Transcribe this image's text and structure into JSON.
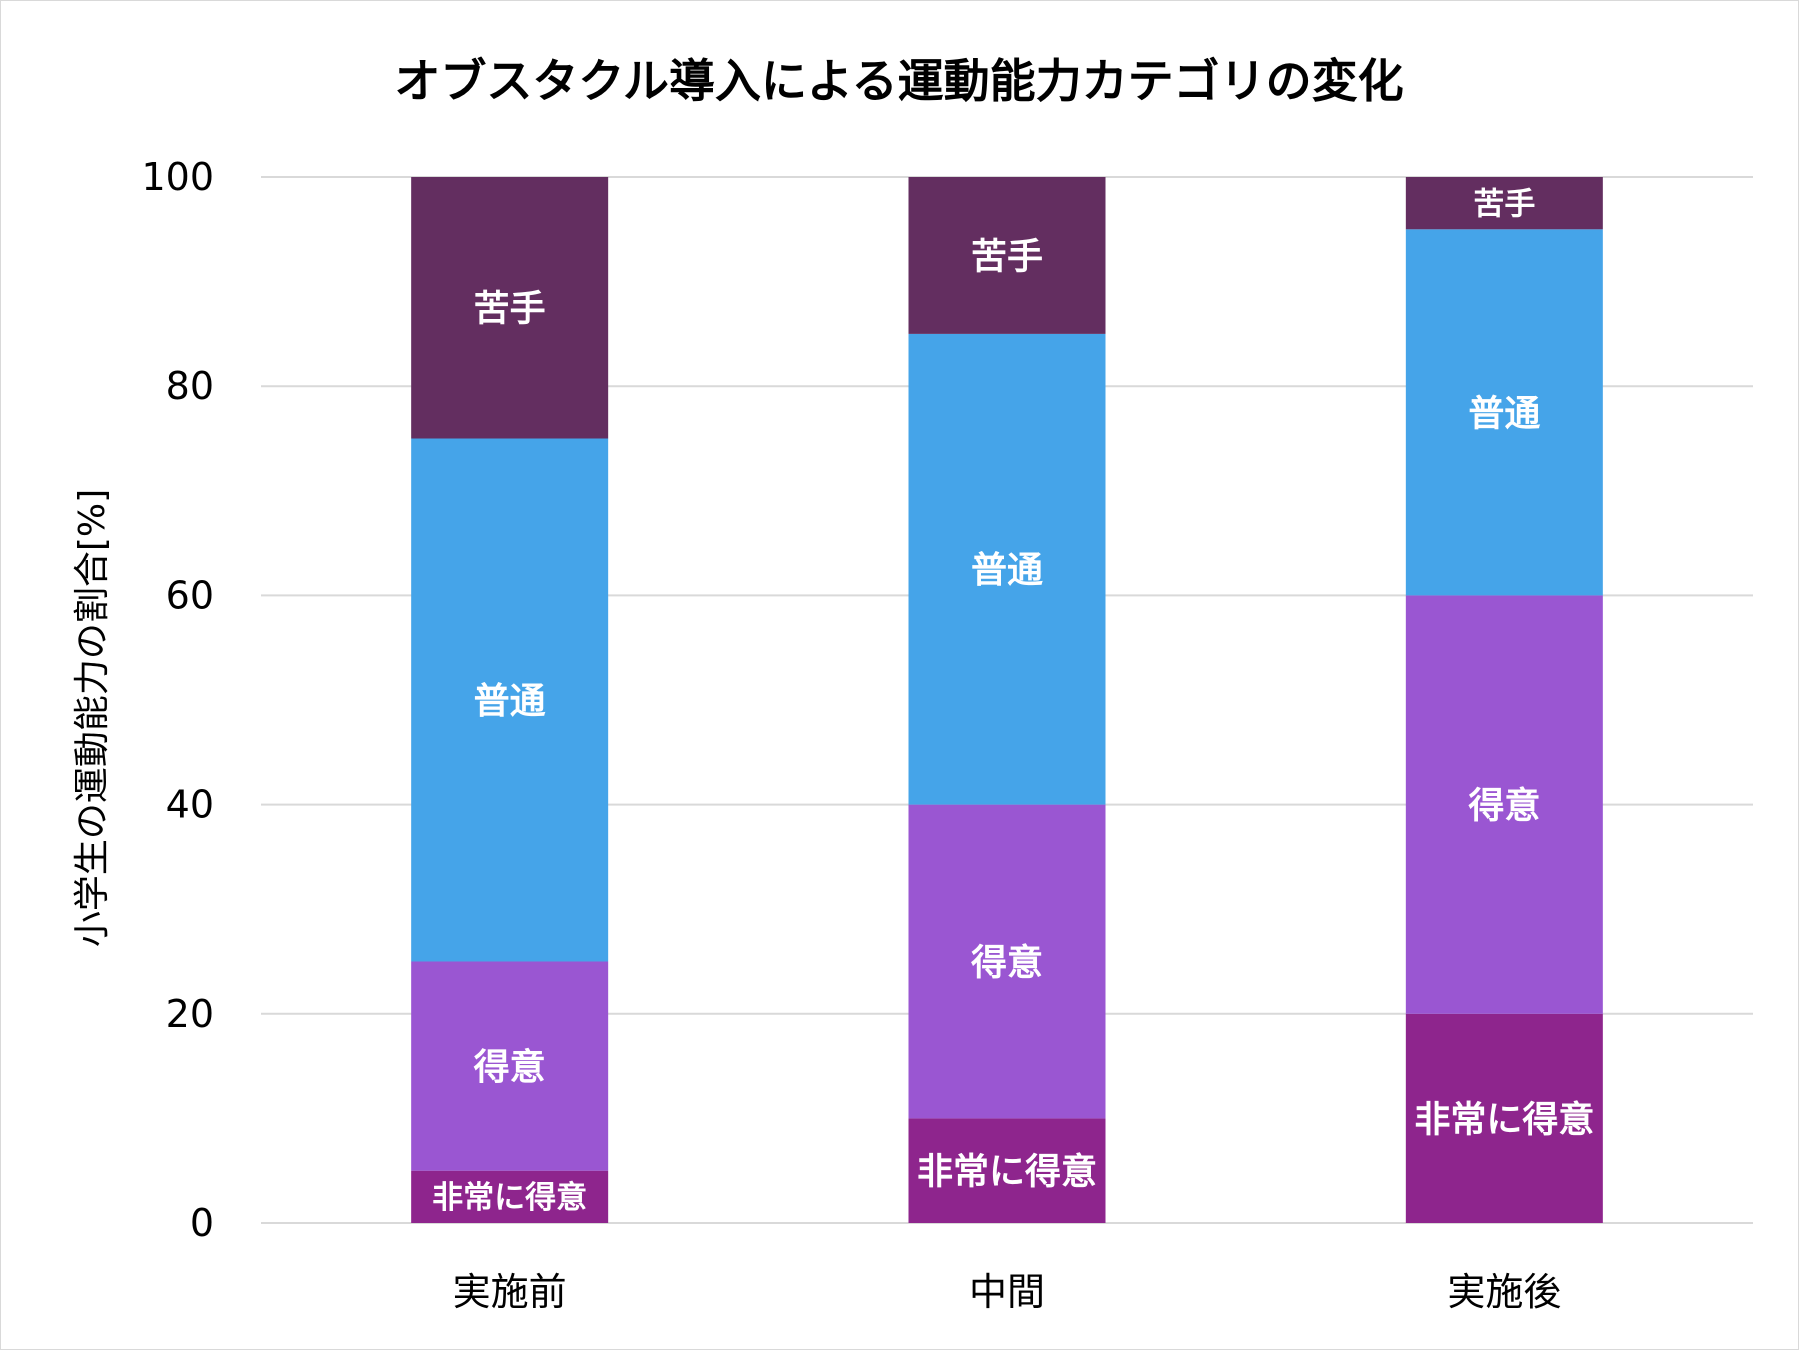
{
  "chart_data": {
    "type": "bar",
    "stacked": true,
    "title": "オブスタクル導入による運動能力カテゴリの変化",
    "xlabel": "",
    "ylabel": "小学生の運動能力の割合[%]",
    "ylim": [
      0,
      100
    ],
    "yticks": [
      0,
      20,
      40,
      60,
      80,
      100
    ],
    "grid": true,
    "categories": [
      "実施前",
      "中間",
      "実施後"
    ],
    "series": [
      {
        "name": "非常に得意",
        "label": "非常に得意",
        "color": "#8E258D",
        "values": [
          5,
          10,
          20
        ]
      },
      {
        "name": "得意",
        "label": "得意",
        "color": "#9A56D2",
        "values": [
          20,
          30,
          40
        ]
      },
      {
        "name": "普通",
        "label": "普通",
        "color": "#45A4E9",
        "values": [
          50,
          45,
          35
        ]
      },
      {
        "name": "苦手",
        "label": "苦手",
        "color": "#632E60",
        "values": [
          25,
          15,
          5
        ]
      }
    ]
  }
}
